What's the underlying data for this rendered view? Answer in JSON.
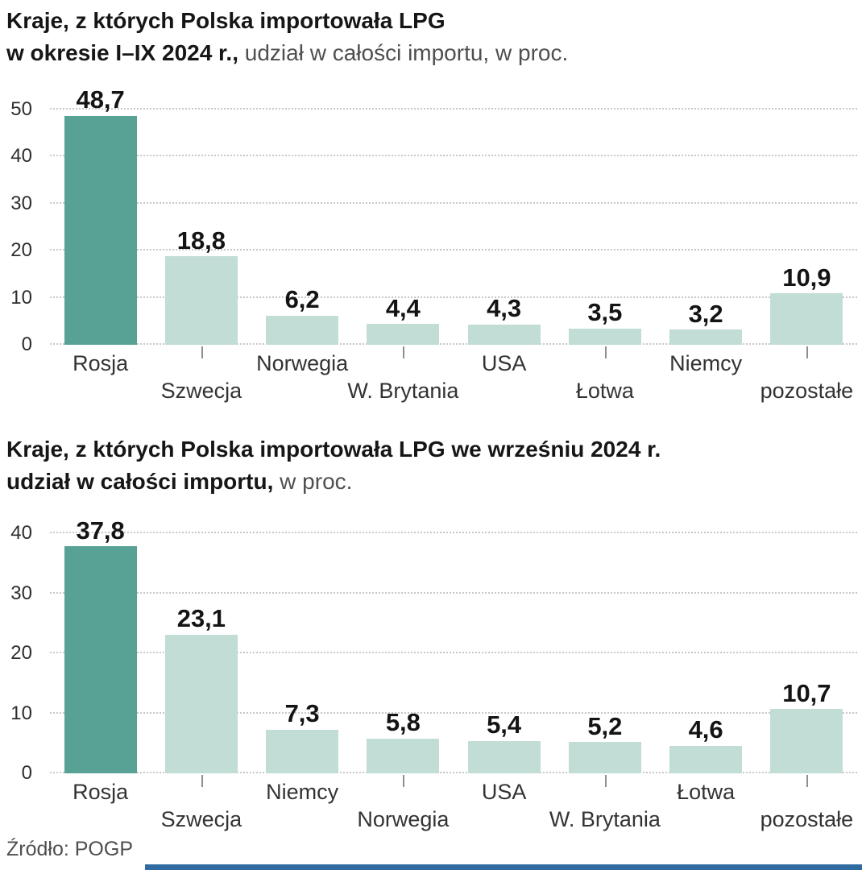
{
  "colors": {
    "bar_highlight": "#57a295",
    "bar_normal": "#c2ddd6",
    "grid": "#c8c8c8",
    "accent_strip": "#2f6ba0"
  },
  "footer": {
    "source": "Źródło: POGP"
  },
  "chart_data": [
    {
      "type": "bar",
      "title": "Kraje, z których Polska importowała LPG w okresie I–IX 2024 r., udział w całości importu, w proc.",
      "title_lines": [
        {
          "bold": "Kraje, z których Polska importowała LPG",
          "regular": ""
        },
        {
          "bold": "w okresie I–IX 2024 r.,",
          "regular": " udział w całości importu, w proc."
        }
      ],
      "categories": [
        "Rosja",
        "Szwecja",
        "Norwegia",
        "W. Brytania",
        "USA",
        "Łotwa",
        "Niemcy",
        "pozostałe"
      ],
      "values": [
        48.7,
        18.8,
        6.2,
        4.4,
        4.3,
        3.5,
        3.2,
        10.9
      ],
      "value_labels": [
        "48,7",
        "18,8",
        "6,2",
        "4,4",
        "4,3",
        "3,5",
        "3,2",
        "10,9"
      ],
      "highlight_index": 0,
      "ylim": [
        0,
        50
      ],
      "yticks": [
        0,
        10,
        20,
        30,
        40,
        50
      ],
      "grid": true,
      "legend": "none"
    },
    {
      "type": "bar",
      "title": "Kraje, z których Polska importowała LPG we wrześniu 2024 r. udział w całości importu, w proc.",
      "title_lines": [
        {
          "bold": "Kraje, z których Polska importowała LPG we wrześniu 2024 r.",
          "regular": ""
        },
        {
          "bold": "udział w całości importu,",
          "regular": " w proc."
        }
      ],
      "categories": [
        "Rosja",
        "Szwecja",
        "Niemcy",
        "Norwegia",
        "USA",
        "W. Brytania",
        "Łotwa",
        "pozostałe"
      ],
      "values": [
        37.8,
        23.1,
        7.3,
        5.8,
        5.4,
        5.2,
        4.6,
        10.7
      ],
      "value_labels": [
        "37,8",
        "23,1",
        "7,3",
        "5,8",
        "5,4",
        "5,2",
        "4,6",
        "10,7"
      ],
      "highlight_index": 0,
      "ylim": [
        0,
        40
      ],
      "yticks": [
        0,
        10,
        20,
        30,
        40
      ],
      "grid": true,
      "legend": "none"
    }
  ]
}
